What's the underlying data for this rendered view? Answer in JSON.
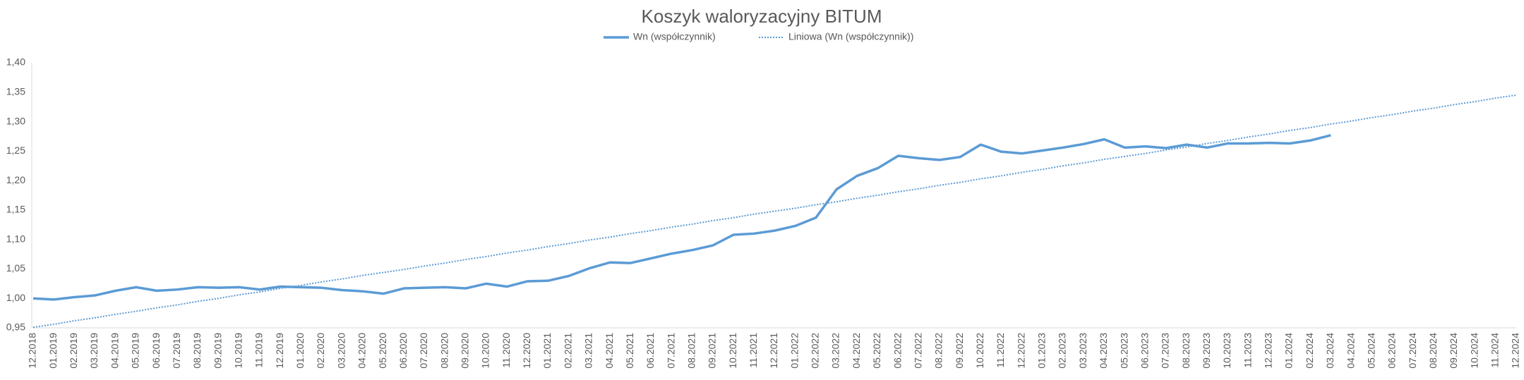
{
  "chart_data": {
    "type": "line",
    "title": "Koszyk waloryzacyjny BITUM",
    "categories": [
      "12.2018",
      "01.2019",
      "02.2019",
      "03.2019",
      "04.2019",
      "05.2019",
      "06.2019",
      "07.2019",
      "08.2019",
      "09.2019",
      "10.2019",
      "11.2019",
      "12.2019",
      "01.2020",
      "02.2020",
      "03.2020",
      "04.2020",
      "05.2020",
      "06.2020",
      "07.2020",
      "08.2020",
      "09.2020",
      "10.2020",
      "11.2020",
      "12.2020",
      "01.2021",
      "02.2021",
      "03.2021",
      "04.2021",
      "05.2021",
      "06.2021",
      "07.2021",
      "08.2021",
      "09.2021",
      "10.2021",
      "11.2021",
      "12.2021",
      "01.2022",
      "02.2022",
      "03.2022",
      "04.2022",
      "05.2022",
      "06.2022",
      "07.2022",
      "08.2022",
      "09.2022",
      "10.2022",
      "11.2022",
      "12.2022",
      "01.2023",
      "02.2023",
      "03.2023",
      "04.2023",
      "05.2023",
      "06.2023",
      "07.2023",
      "08.2023",
      "09.2023",
      "10.2023",
      "11.2023",
      "12.2023",
      "01.2024",
      "02.2024",
      "03.2024",
      "04.2024",
      "05.2024",
      "06.2024",
      "07.2024",
      "08.2024",
      "09.2024",
      "10.2024",
      "11.2024",
      "12.2024"
    ],
    "series": [
      {
        "name": "Wn (współczynnik)",
        "color": "#5b9bd5",
        "style": "solid",
        "values": [
          1.0,
          0.998,
          1.002,
          1.005,
          1.013,
          1.019,
          1.013,
          1.015,
          1.019,
          1.018,
          1.019,
          1.015,
          1.02,
          1.019,
          1.018,
          1.014,
          1.012,
          1.008,
          1.017,
          1.018,
          1.019,
          1.017,
          1.025,
          1.02,
          1.029,
          1.03,
          1.038,
          1.051,
          1.061,
          1.06,
          1.068,
          1.076,
          1.082,
          1.09,
          1.108,
          1.11,
          1.115,
          1.123,
          1.137,
          1.185,
          1.208,
          1.221,
          1.242,
          1.238,
          1.235,
          1.24,
          1.261,
          1.249,
          1.246,
          1.251,
          1.256,
          1.262,
          1.27,
          1.256,
          1.258,
          1.255,
          1.261,
          1.256,
          1.263,
          1.263,
          1.264,
          1.263,
          1.268,
          1.277,
          null,
          null,
          null,
          null,
          null,
          null,
          null,
          null,
          null
        ]
      },
      {
        "name": "Liniowa (Wn (współczynnik))",
        "color": "#5b9bd5",
        "style": "dotted",
        "values": [
          0.951,
          0.956,
          0.962,
          0.967,
          0.973,
          0.978,
          0.984,
          0.989,
          0.995,
          1.0,
          1.006,
          1.011,
          1.017,
          1.022,
          1.028,
          1.033,
          1.039,
          1.044,
          1.049,
          1.055,
          1.06,
          1.066,
          1.071,
          1.077,
          1.082,
          1.088,
          1.093,
          1.099,
          1.104,
          1.11,
          1.115,
          1.121,
          1.126,
          1.132,
          1.137,
          1.143,
          1.148,
          1.153,
          1.159,
          1.164,
          1.17,
          1.175,
          1.181,
          1.186,
          1.192,
          1.197,
          1.203,
          1.208,
          1.214,
          1.219,
          1.225,
          1.23,
          1.236,
          1.241,
          1.246,
          1.252,
          1.257,
          1.263,
          1.268,
          1.274,
          1.279,
          1.285,
          1.29,
          1.296,
          1.301,
          1.307,
          1.312,
          1.318,
          1.323,
          1.329,
          1.334,
          1.34,
          1.345
        ]
      }
    ],
    "ylim": [
      0.95,
      1.4
    ],
    "yticks": [
      {
        "value": 0.95,
        "label": "0,95"
      },
      {
        "value": 1.0,
        "label": "1,00"
      },
      {
        "value": 1.05,
        "label": "1,05"
      },
      {
        "value": 1.1,
        "label": "1,10"
      },
      {
        "value": 1.15,
        "label": "1,15"
      },
      {
        "value": 1.2,
        "label": "1,20"
      },
      {
        "value": 1.25,
        "label": "1,25"
      },
      {
        "value": 1.3,
        "label": "1,30"
      },
      {
        "value": 1.35,
        "label": "1,35"
      },
      {
        "value": 1.4,
        "label": "1,40"
      }
    ],
    "legend": "top"
  }
}
